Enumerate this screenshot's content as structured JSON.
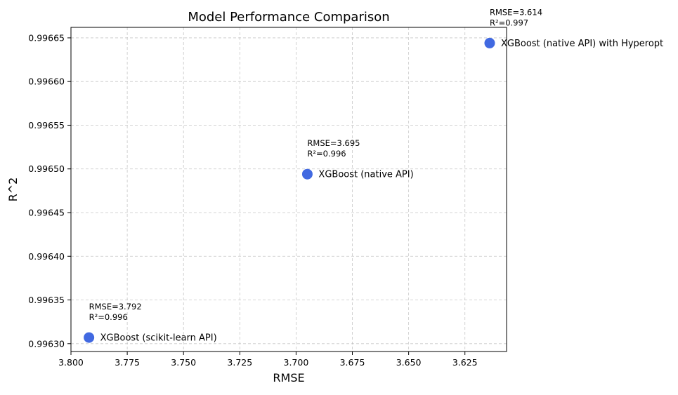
{
  "chart_data": {
    "type": "scatter",
    "title": "Model Performance Comparison",
    "xlabel": "RMSE",
    "ylabel": "R^2",
    "x_inverted": true,
    "xlim": [
      3.8,
      3.6065
    ],
    "ylim": [
      0.996291,
      0.996662
    ],
    "x_ticks": [
      3.8,
      3.775,
      3.75,
      3.725,
      3.7,
      3.675,
      3.65,
      3.625
    ],
    "x_tick_labels": [
      "3.800",
      "3.775",
      "3.750",
      "3.725",
      "3.700",
      "3.675",
      "3.650",
      "3.625"
    ],
    "y_ticks": [
      0.9963,
      0.99635,
      0.9964,
      0.99645,
      0.9965,
      0.99655,
      0.9966,
      0.99665
    ],
    "y_tick_labels": [
      "0.99630",
      "0.99635",
      "0.99640",
      "0.99645",
      "0.99650",
      "0.99655",
      "0.99660",
      "0.99665"
    ],
    "grid": true,
    "marker_color": "#4169e1",
    "points": [
      {
        "label": "XGBoost (scikit-learn API)",
        "x": 3.792,
        "y": 0.996307,
        "annotation_line1": "RMSE=3.792",
        "annotation_line2": "R²=0.996"
      },
      {
        "label": "XGBoost (native API)",
        "x": 3.695,
        "y": 0.996494,
        "annotation_line1": "RMSE=3.695",
        "annotation_line2": "R²=0.996"
      },
      {
        "label": "XGBoost (native API) with Hyperopt",
        "x": 3.614,
        "y": 0.996644,
        "annotation_line1": "RMSE=3.614",
        "annotation_line2": "R²=0.997"
      }
    ]
  }
}
